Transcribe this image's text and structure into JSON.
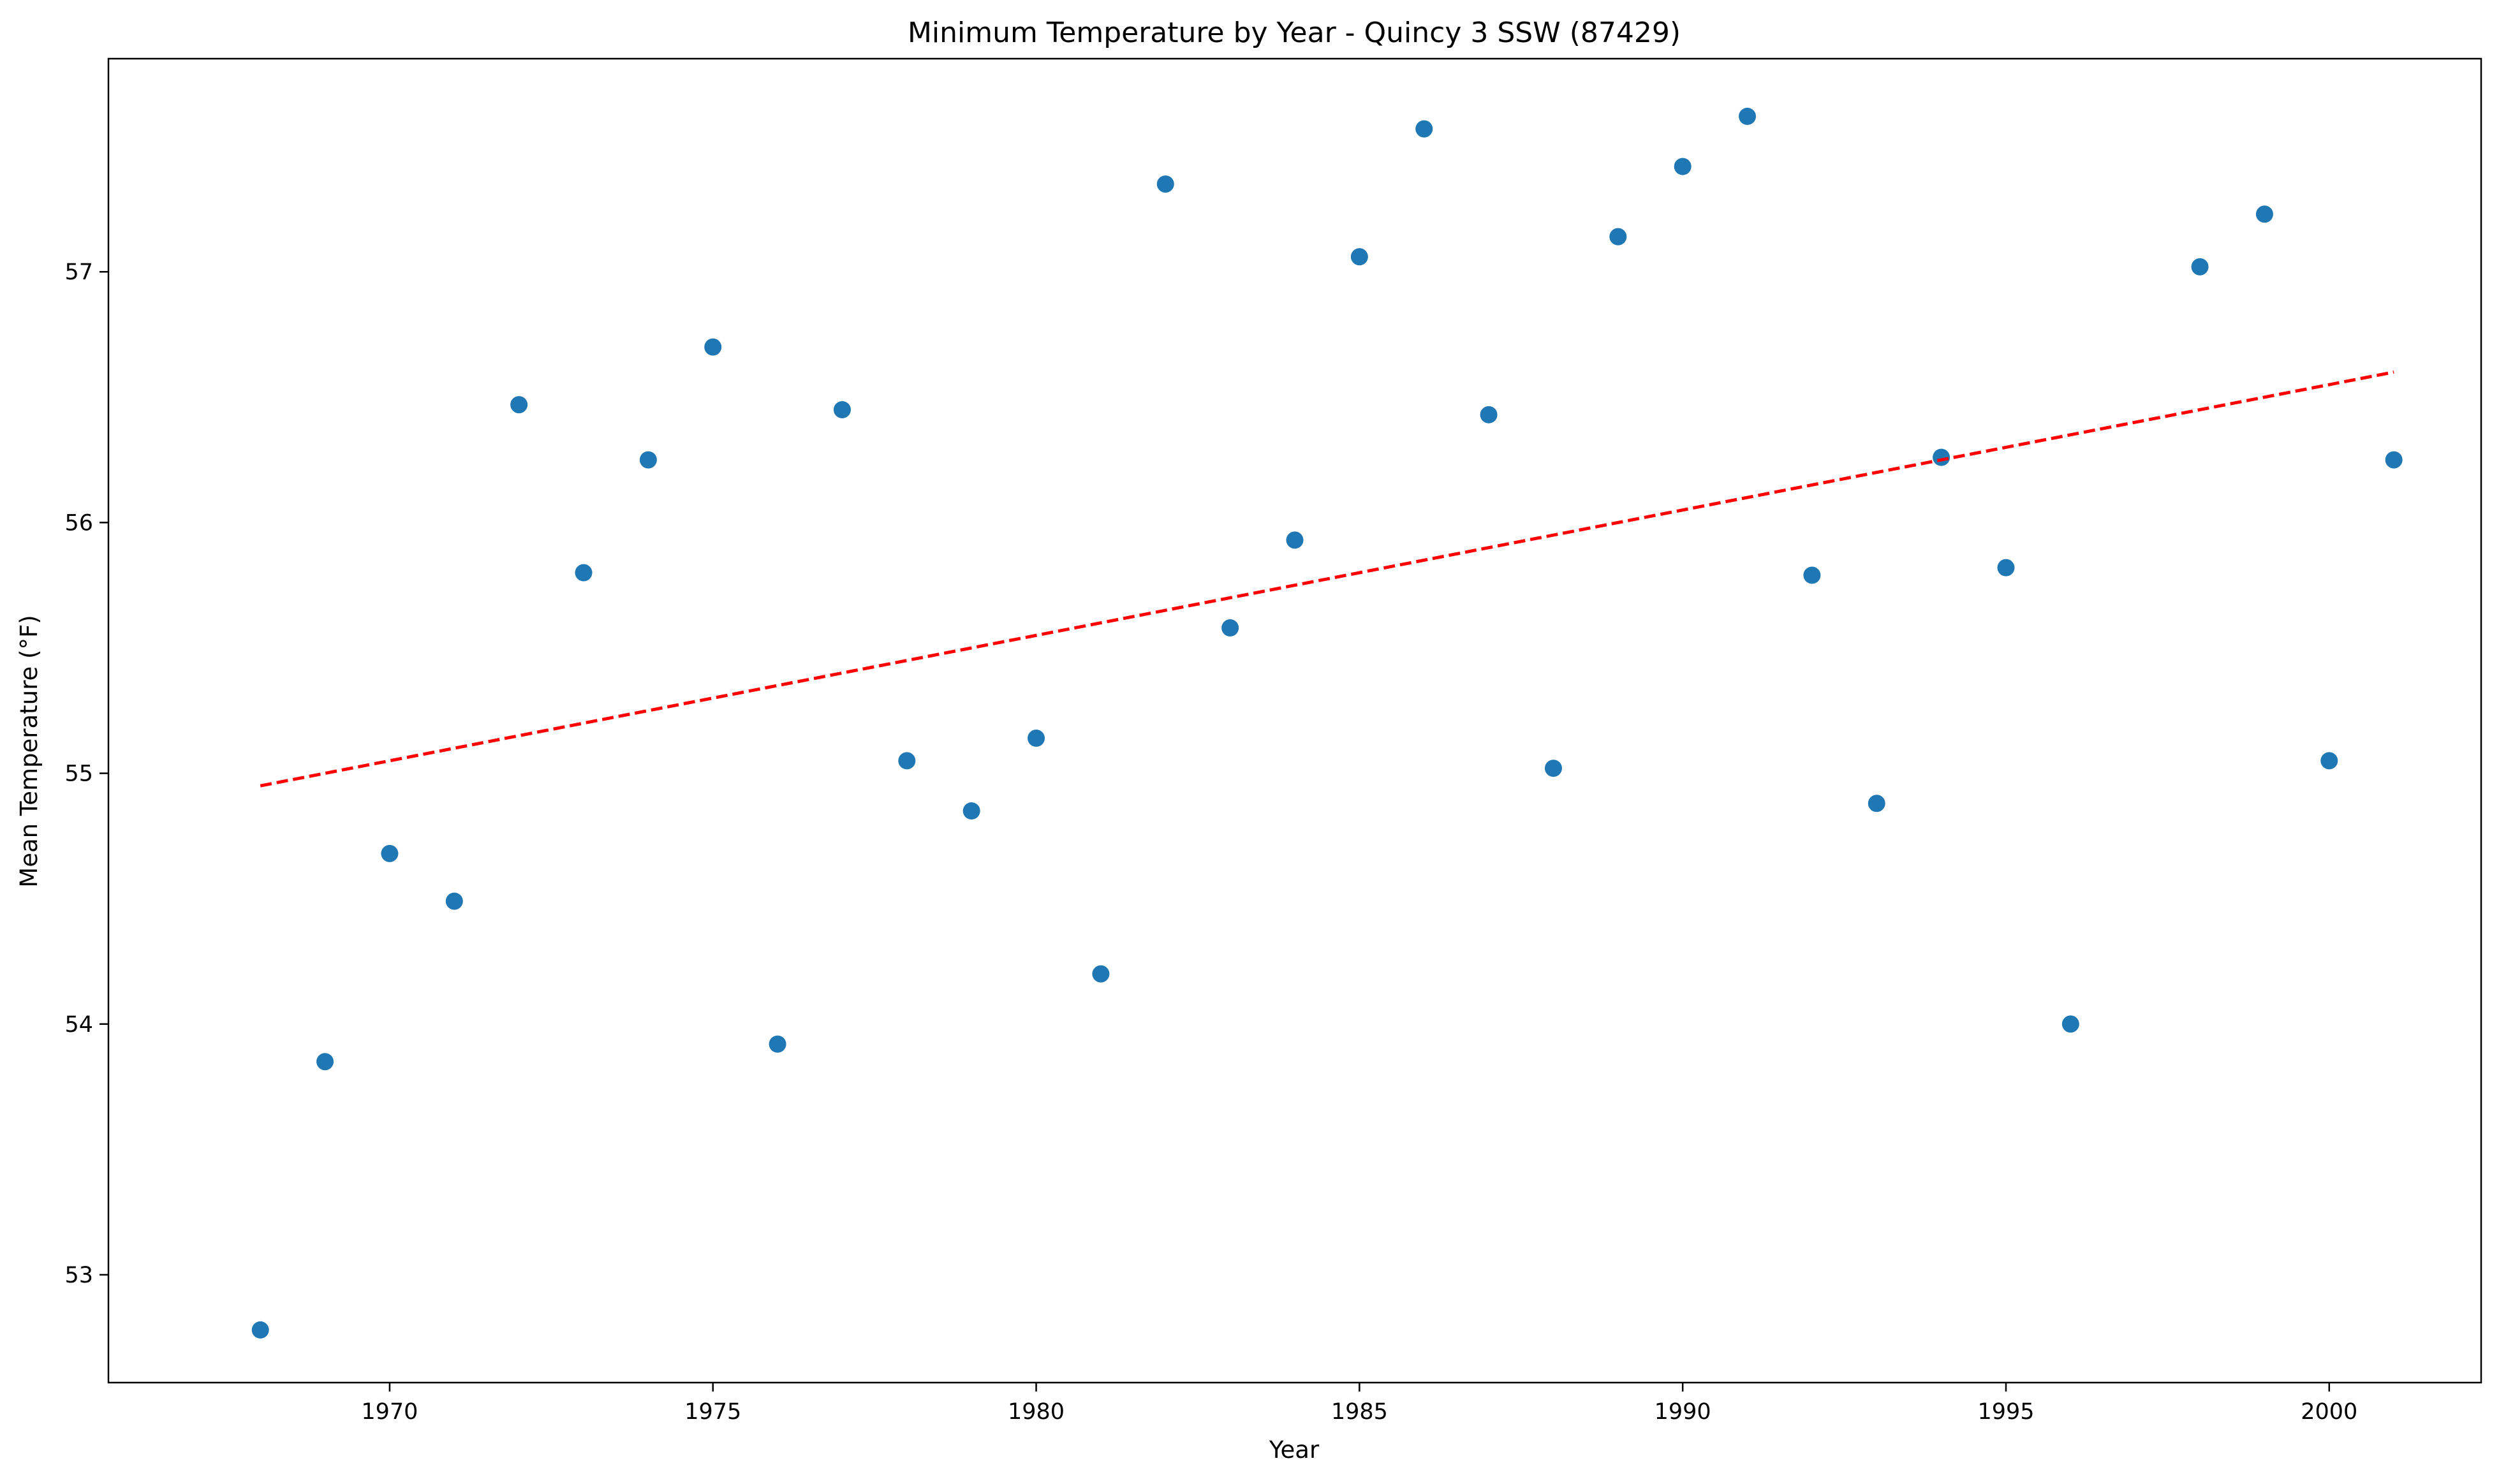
{
  "chart_data": {
    "type": "scatter",
    "title": "Minimum Temperature by Year - Quincy 3 SSW (87429)",
    "xlabel": "Year",
    "ylabel": "Mean Temperature (°F)",
    "xlim": [
      1965.65,
      2002.35
    ],
    "ylim": [
      52.57,
      57.85
    ],
    "xticks": [
      1970,
      1975,
      1980,
      1985,
      1990,
      1995,
      2000
    ],
    "yticks": [
      53,
      54,
      55,
      56,
      57
    ],
    "grid": false,
    "legend": "none",
    "series": [
      {
        "color": "#1f77b4",
        "x": [
          1968,
          1969,
          1970,
          1971,
          1972,
          1973,
          1974,
          1975,
          1976,
          1977,
          1978,
          1979,
          1980,
          1981,
          1982,
          1983,
          1984,
          1985,
          1986,
          1987,
          1988,
          1989,
          1990,
          1991,
          1992,
          1993,
          1994,
          1995,
          1996,
          1998,
          1999,
          2000,
          2001
        ],
        "y": [
          52.78,
          53.85,
          54.68,
          54.49,
          56.47,
          55.8,
          56.25,
          56.7,
          53.92,
          56.45,
          55.05,
          54.85,
          55.14,
          54.2,
          57.35,
          55.58,
          55.93,
          57.06,
          57.57,
          56.43,
          55.02,
          57.14,
          57.42,
          57.62,
          55.79,
          54.88,
          56.26,
          55.82,
          54.0,
          57.02,
          57.23,
          55.05,
          56.25
        ]
      }
    ],
    "trendline": {
      "color": "#ff0000",
      "style": "dashed",
      "x": [
        1968,
        2001
      ],
      "y": [
        54.95,
        56.6
      ]
    }
  }
}
